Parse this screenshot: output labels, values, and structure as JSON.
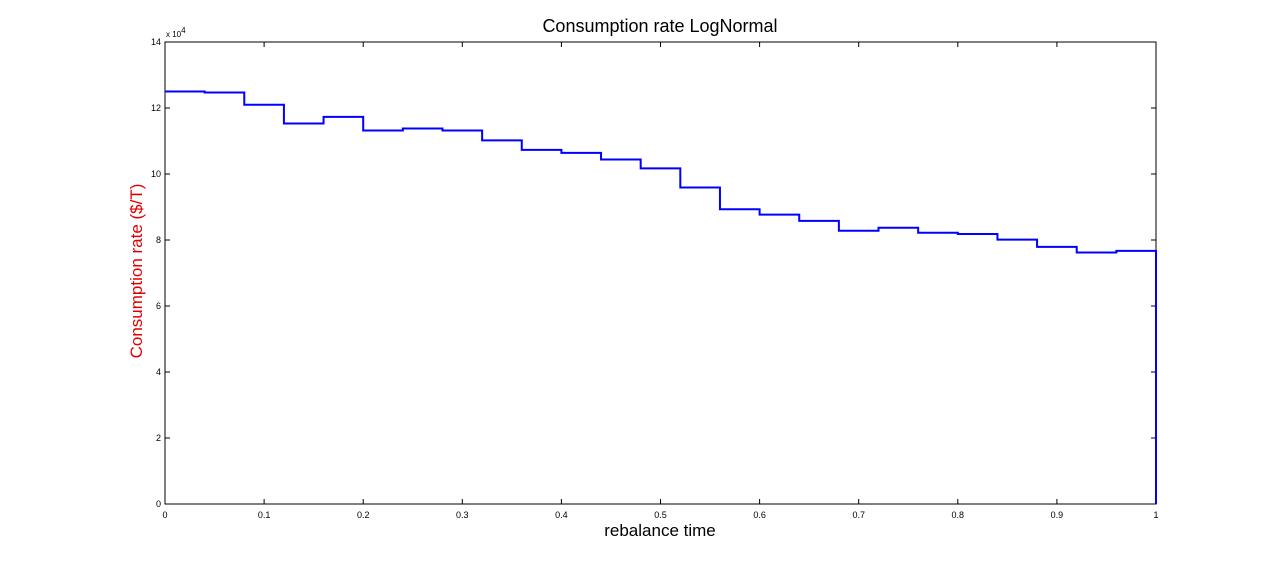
{
  "chart_data": {
    "type": "line",
    "step": true,
    "title": "Consumption rate LogNormal",
    "xlabel": "rebalance time",
    "ylabel": "Consumption rate ($/T)",
    "y_multiplier_label": "x 10",
    "y_multiplier_exponent": "4",
    "xlim": [
      0,
      1
    ],
    "ylim": [
      0,
      140000
    ],
    "x_ticks": [
      0,
      0.1,
      0.2,
      0.3,
      0.4,
      0.5,
      0.6,
      0.7,
      0.8,
      0.9,
      1
    ],
    "x_tick_labels": [
      "0",
      "0.1",
      "0.2",
      "0.3",
      "0.4",
      "0.5",
      "0.6",
      "0.7",
      "0.8",
      "0.9",
      "1"
    ],
    "y_ticks": [
      0,
      20000,
      40000,
      60000,
      80000,
      100000,
      120000,
      140000
    ],
    "y_tick_labels": [
      "0",
      "2",
      "4",
      "6",
      "8",
      "10",
      "12",
      "14"
    ],
    "grid": false,
    "legend": "none",
    "colors": {
      "series": "#0000ff",
      "ylabel": "#e00000",
      "axes": "#000000"
    },
    "series": [
      {
        "x": [
          0,
          0.04,
          0.08,
          0.12,
          0.16,
          0.2,
          0.24,
          0.28,
          0.32,
          0.36,
          0.4,
          0.44,
          0.48,
          0.52,
          0.56,
          0.6,
          0.64,
          0.68,
          0.72,
          0.76,
          0.8,
          0.84,
          0.88,
          0.92,
          0.96
        ],
        "values": [
          125000,
          124700,
          121000,
          115300,
          117300,
          113200,
          113800,
          113200,
          110200,
          107300,
          106400,
          104400,
          101700,
          95900,
          89300,
          87700,
          85800,
          82800,
          83700,
          82200,
          81800,
          80100,
          77900,
          76200,
          76700
        ],
        "x_end": 1
      }
    ]
  }
}
